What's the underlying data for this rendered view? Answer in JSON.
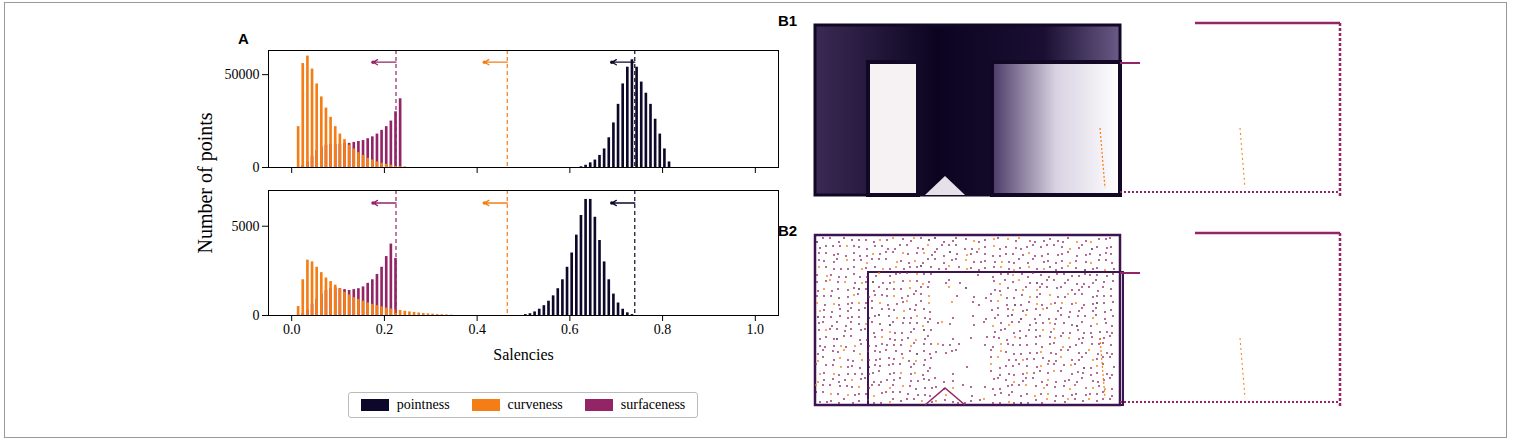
{
  "panel_labels": {
    "chart": "A",
    "images": [
      "B1",
      "B2"
    ]
  },
  "chart_data": [
    {
      "type": "histogram",
      "ylabel": "Number of points",
      "tick_labels": "y",
      "xlim": [
        -0.05,
        1.05
      ],
      "xticks": [
        {
          "value": 0,
          "label": "0.0"
        },
        {
          "value": 0.2,
          "label": "0.2"
        },
        {
          "value": 0.4,
          "label": "0.4"
        },
        {
          "value": 0.6,
          "label": "0.6"
        },
        {
          "value": 0.8,
          "label": "0.8"
        },
        {
          "value": 1,
          "label": "1.0"
        }
      ],
      "ylim": [
        0,
        63000
      ],
      "yticks": [
        0,
        50000
      ],
      "series": [
        {
          "name": "pointness",
          "color": "#0d0829",
          "threshold": 0.74,
          "bins": [
            0.62,
            0.63,
            0.64,
            0.65,
            0.66,
            0.67,
            0.68,
            0.69,
            0.7,
            0.71,
            0.72,
            0.73,
            0.74,
            0.75,
            0.76,
            0.77,
            0.78,
            0.79,
            0.8,
            0.81,
            0.82
          ],
          "values": [
            400,
            1200,
            2500,
            4000,
            6500,
            10000,
            16000,
            24000,
            34000,
            45000,
            54000,
            58000,
            54000,
            46000,
            40000,
            34000,
            26000,
            18000,
            10000,
            3000
          ]
        },
        {
          "name": "curveness",
          "color": "#f57d15",
          "threshold": 0.465,
          "bins": [
            0.01,
            0.02,
            0.03,
            0.04,
            0.05,
            0.06,
            0.07,
            0.08,
            0.09,
            0.1,
            0.11,
            0.12,
            0.13,
            0.14,
            0.15,
            0.16,
            0.17,
            0.18,
            0.19,
            0.2,
            0.21,
            0.22,
            0.23,
            0.24,
            0.25
          ],
          "values": [
            22000,
            56000,
            60000,
            53000,
            45000,
            38000,
            32000,
            27000,
            22000,
            18000,
            15000,
            12000,
            10000,
            8000,
            6500,
            5000,
            4000,
            3000,
            2300,
            1700,
            1200,
            800,
            500,
            300
          ]
        },
        {
          "name": "surfaceness",
          "color": "#932567",
          "threshold": 0.225,
          "bins": [
            0.02,
            0.03,
            0.04,
            0.05,
            0.06,
            0.07,
            0.08,
            0.09,
            0.1,
            0.11,
            0.12,
            0.13,
            0.14,
            0.15,
            0.16,
            0.17,
            0.18,
            0.19,
            0.2,
            0.21,
            0.22,
            0.23,
            0.24
          ],
          "values": [
            1000,
            3000,
            6000,
            9000,
            11000,
            12000,
            12500,
            12500,
            12500,
            13000,
            13000,
            13500,
            14000,
            14500,
            15500,
            16500,
            18000,
            20000,
            22000,
            25000,
            30000,
            37000
          ]
        }
      ]
    },
    {
      "type": "histogram",
      "xlabel": "Salencies",
      "legend": "bottom",
      "xlim": [
        -0.05,
        1.05
      ],
      "xticks": [
        {
          "value": 0,
          "label": "0.0"
        },
        {
          "value": 0.2,
          "label": "0.2"
        },
        {
          "value": 0.4,
          "label": "0.4"
        },
        {
          "value": 0.6,
          "label": "0.6"
        },
        {
          "value": 0.8,
          "label": "0.8"
        },
        {
          "value": 1,
          "label": "1.0"
        }
      ],
      "ylim": [
        0,
        7000
      ],
      "yticks": [
        0,
        5000
      ],
      "series": [
        {
          "name": "pointness",
          "color": "#0d0829",
          "threshold": 0.74,
          "bins": [
            0.5,
            0.51,
            0.52,
            0.53,
            0.54,
            0.55,
            0.56,
            0.57,
            0.58,
            0.59,
            0.6,
            0.61,
            0.62,
            0.63,
            0.64,
            0.65,
            0.66,
            0.67,
            0.68,
            0.69,
            0.7,
            0.71,
            0.72,
            0.73,
            0.74
          ],
          "values": [
            50,
            100,
            200,
            350,
            550,
            800,
            1100,
            1500,
            2000,
            2700,
            3500,
            4500,
            5600,
            6500,
            6500,
            5500,
            4200,
            3000,
            2000,
            1200,
            700,
            350,
            150,
            50
          ]
        },
        {
          "name": "curveness",
          "color": "#f57d15",
          "threshold": 0.465,
          "bins": [
            0.01,
            0.02,
            0.03,
            0.04,
            0.05,
            0.06,
            0.07,
            0.08,
            0.09,
            0.1,
            0.11,
            0.12,
            0.13,
            0.14,
            0.15,
            0.16,
            0.17,
            0.18,
            0.19,
            0.2,
            0.21,
            0.22,
            0.23,
            0.24,
            0.25,
            0.26,
            0.27,
            0.28,
            0.29,
            0.3,
            0.31,
            0.32,
            0.33,
            0.34,
            0.35
          ],
          "values": [
            500,
            2000,
            3100,
            3000,
            2700,
            2400,
            2100,
            1900,
            1700,
            1500,
            1300,
            1150,
            1000,
            900,
            800,
            700,
            620,
            550,
            480,
            420,
            370,
            320,
            280,
            240,
            200,
            170,
            140,
            110,
            90,
            70,
            50,
            40,
            30,
            20
          ]
        },
        {
          "name": "surfaceness",
          "color": "#932567",
          "threshold": 0.225,
          "bins": [
            0.02,
            0.03,
            0.04,
            0.05,
            0.06,
            0.07,
            0.08,
            0.09,
            0.1,
            0.11,
            0.12,
            0.13,
            0.14,
            0.15,
            0.16,
            0.17,
            0.18,
            0.19,
            0.2,
            0.21,
            0.22,
            0.23
          ],
          "values": [
            100,
            300,
            600,
            900,
            1200,
            1400,
            1500,
            1550,
            1500,
            1450,
            1400,
            1450,
            1500,
            1600,
            1800,
            2000,
            2300,
            2700,
            3300,
            4000,
            3200
          ]
        }
      ]
    }
  ]
}
